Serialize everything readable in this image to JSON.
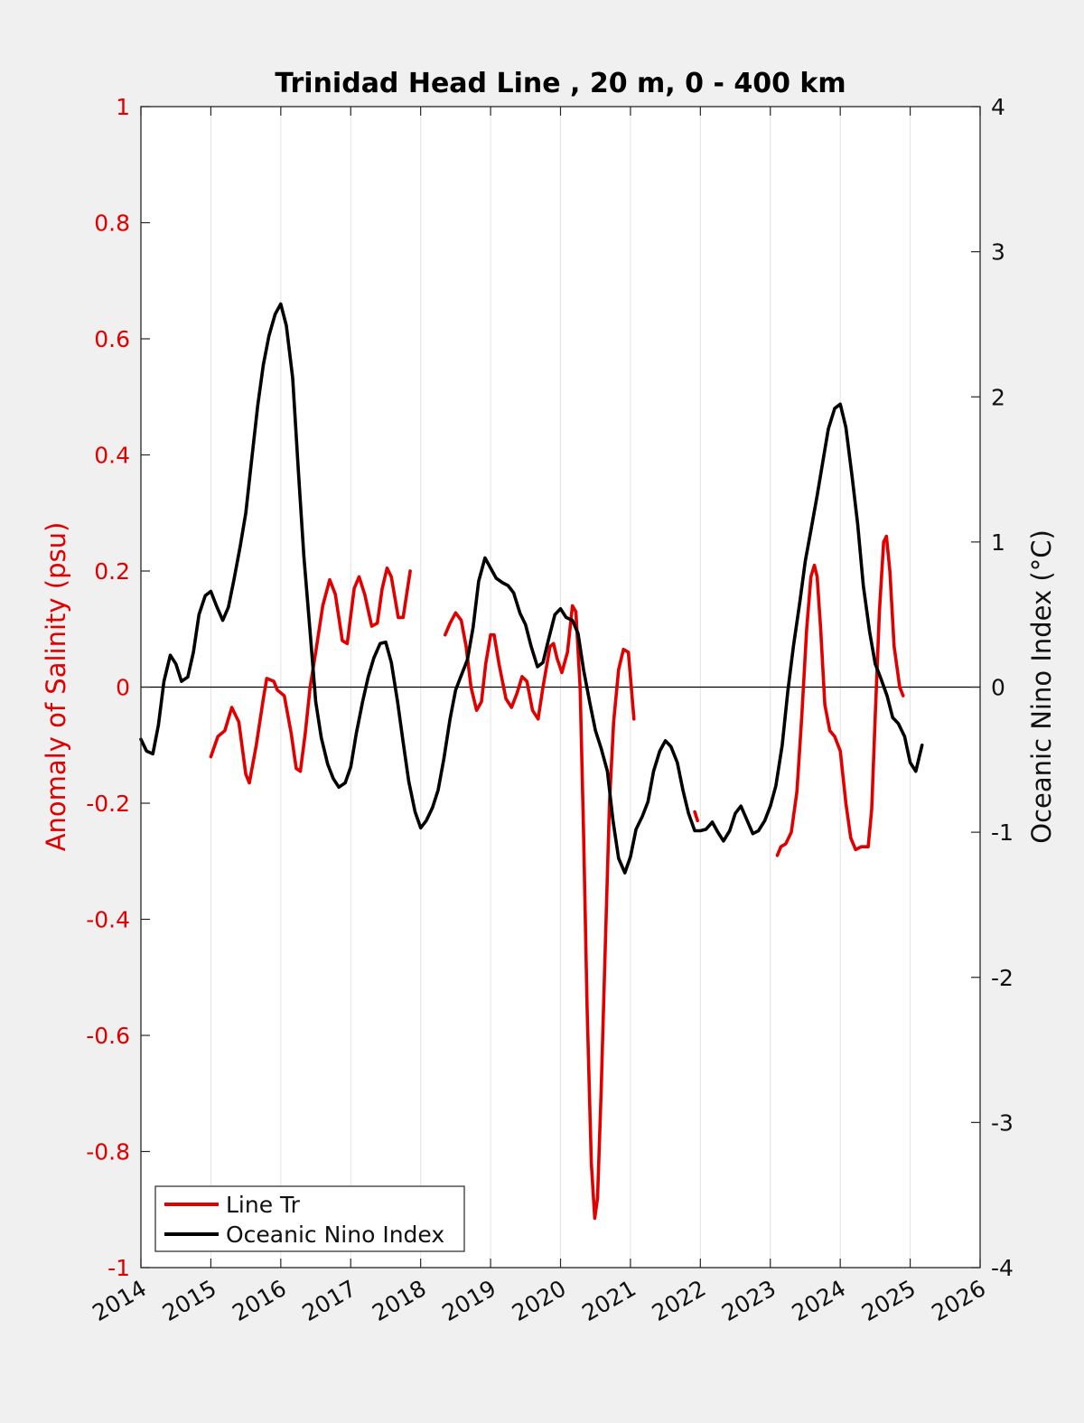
{
  "chart_data": {
    "type": "line",
    "title": "Trinidad Head Line , 20 m, 0 - 400 km",
    "ylabel_left": "Anomaly of Salinity (psu)",
    "ylabel_right": "Oceanic Nino Index (°C)",
    "xlim": [
      2014,
      2026
    ],
    "ylim_left": [
      -1,
      1
    ],
    "ylim_right": [
      -4,
      4
    ],
    "x_ticks": [
      "2014",
      "2015",
      "2016",
      "2017",
      "2018",
      "2019",
      "2020",
      "2021",
      "2022",
      "2023",
      "2024",
      "2025",
      "2026"
    ],
    "y_left_ticks": [
      "-1",
      "-0.8",
      "-0.6",
      "-0.4",
      "-0.2",
      "0",
      "0.2",
      "0.4",
      "0.6",
      "0.8",
      "1"
    ],
    "y_right_ticks": [
      "-4",
      "-3",
      "-2",
      "-1",
      "0",
      "1",
      "2",
      "3",
      "4"
    ],
    "grid": "vertical",
    "zero_line": true,
    "legend_position": "bottom-left",
    "series": [
      {
        "name": "Line Tr",
        "axis": "left",
        "color": "#e00000",
        "segments": [
          [
            [
              2015.0,
              -0.12
            ],
            [
              2015.1,
              -0.085
            ],
            [
              2015.2,
              -0.075
            ],
            [
              2015.3,
              -0.035
            ],
            [
              2015.4,
              -0.06
            ],
            [
              2015.5,
              -0.15
            ],
            [
              2015.55,
              -0.165
            ],
            [
              2015.65,
              -0.1
            ],
            [
              2015.75,
              -0.02
            ],
            [
              2015.8,
              0.015
            ],
            [
              2015.9,
              0.01
            ],
            [
              2015.95,
              -0.005
            ],
            [
              2016.05,
              -0.015
            ],
            [
              2016.15,
              -0.08
            ],
            [
              2016.22,
              -0.14
            ],
            [
              2016.28,
              -0.145
            ],
            [
              2016.35,
              -0.08
            ],
            [
              2016.42,
              0.0
            ],
            [
              2016.5,
              0.06
            ],
            [
              2016.6,
              0.14
            ],
            [
              2016.7,
              0.185
            ],
            [
              2016.78,
              0.16
            ],
            [
              2016.88,
              0.08
            ],
            [
              2016.95,
              0.075
            ],
            [
              2017.05,
              0.17
            ],
            [
              2017.12,
              0.19
            ],
            [
              2017.2,
              0.16
            ],
            [
              2017.3,
              0.105
            ],
            [
              2017.38,
              0.11
            ],
            [
              2017.45,
              0.17
            ],
            [
              2017.52,
              0.205
            ],
            [
              2017.58,
              0.19
            ],
            [
              2017.68,
              0.12
            ],
            [
              2017.75,
              0.12
            ],
            [
              2017.85,
              0.2
            ]
          ],
          [
            [
              2018.35,
              0.09
            ],
            [
              2018.42,
              0.11
            ],
            [
              2018.5,
              0.128
            ],
            [
              2018.58,
              0.115
            ],
            [
              2018.65,
              0.07
            ],
            [
              2018.72,
              0.0
            ],
            [
              2018.8,
              -0.04
            ],
            [
              2018.87,
              -0.025
            ],
            [
              2018.93,
              0.04
            ],
            [
              2019.0,
              0.09
            ],
            [
              2019.05,
              0.09
            ],
            [
              2019.12,
              0.04
            ],
            [
              2019.22,
              -0.02
            ],
            [
              2019.3,
              -0.035
            ],
            [
              2019.38,
              -0.01
            ],
            [
              2019.45,
              0.018
            ],
            [
              2019.52,
              0.01
            ],
            [
              2019.6,
              -0.04
            ],
            [
              2019.68,
              -0.055
            ],
            [
              2019.75,
              0.0
            ],
            [
              2019.85,
              0.07
            ],
            [
              2019.9,
              0.075
            ],
            [
              2019.95,
              0.05
            ],
            [
              2020.02,
              0.025
            ],
            [
              2020.1,
              0.06
            ],
            [
              2020.17,
              0.14
            ],
            [
              2020.22,
              0.13
            ],
            [
              2020.28,
              0.0
            ],
            [
              2020.33,
              -0.25
            ],
            [
              2020.38,
              -0.55
            ],
            [
              2020.44,
              -0.82
            ],
            [
              2020.49,
              -0.915
            ],
            [
              2020.53,
              -0.88
            ],
            [
              2020.58,
              -0.7
            ],
            [
              2020.64,
              -0.45
            ],
            [
              2020.7,
              -0.2
            ],
            [
              2020.76,
              -0.06
            ],
            [
              2020.83,
              0.03
            ],
            [
              2020.9,
              0.065
            ],
            [
              2020.97,
              0.06
            ],
            [
              2021.05,
              -0.055
            ]
          ],
          [
            [
              2021.92,
              -0.215
            ],
            [
              2021.96,
              -0.23
            ]
          ],
          [
            [
              2023.1,
              -0.29
            ],
            [
              2023.15,
              -0.275
            ],
            [
              2023.22,
              -0.27
            ],
            [
              2023.3,
              -0.25
            ],
            [
              2023.38,
              -0.18
            ],
            [
              2023.45,
              -0.05
            ],
            [
              2023.52,
              0.1
            ],
            [
              2023.58,
              0.19
            ],
            [
              2023.63,
              0.21
            ],
            [
              2023.67,
              0.19
            ],
            [
              2023.72,
              0.1
            ],
            [
              2023.78,
              -0.03
            ],
            [
              2023.85,
              -0.075
            ],
            [
              2023.92,
              -0.085
            ],
            [
              2024.0,
              -0.11
            ],
            [
              2024.08,
              -0.2
            ],
            [
              2024.15,
              -0.26
            ],
            [
              2024.22,
              -0.28
            ],
            [
              2024.3,
              -0.275
            ],
            [
              2024.4,
              -0.275
            ],
            [
              2024.45,
              -0.21
            ],
            [
              2024.5,
              -0.05
            ],
            [
              2024.56,
              0.13
            ],
            [
              2024.62,
              0.25
            ],
            [
              2024.66,
              0.26
            ],
            [
              2024.71,
              0.2
            ],
            [
              2024.77,
              0.07
            ],
            [
              2024.85,
              0.0
            ],
            [
              2024.9,
              -0.015
            ]
          ]
        ]
      },
      {
        "name": "Oceanic Nino Index",
        "axis": "right",
        "color": "#000000",
        "segments": [
          [
            [
              2014.0,
              -0.36
            ],
            [
              2014.08,
              -0.44
            ],
            [
              2014.17,
              -0.46
            ],
            [
              2014.25,
              -0.26
            ],
            [
              2014.33,
              0.04
            ],
            [
              2014.42,
              0.22
            ],
            [
              2014.5,
              0.16
            ],
            [
              2014.58,
              0.04
            ],
            [
              2014.67,
              0.07
            ],
            [
              2014.75,
              0.24
            ],
            [
              2014.83,
              0.5
            ],
            [
              2014.92,
              0.63
            ],
            [
              2015.0,
              0.66
            ],
            [
              2015.08,
              0.56
            ],
            [
              2015.17,
              0.46
            ],
            [
              2015.25,
              0.55
            ],
            [
              2015.33,
              0.74
            ],
            [
              2015.42,
              0.97
            ],
            [
              2015.5,
              1.2
            ],
            [
              2015.58,
              1.55
            ],
            [
              2015.67,
              1.94
            ],
            [
              2015.75,
              2.22
            ],
            [
              2015.83,
              2.42
            ],
            [
              2015.92,
              2.57
            ],
            [
              2016.0,
              2.64
            ],
            [
              2016.08,
              2.49
            ],
            [
              2016.17,
              2.13
            ],
            [
              2016.25,
              1.5
            ],
            [
              2016.33,
              0.9
            ],
            [
              2016.42,
              0.38
            ],
            [
              2016.5,
              -0.1
            ],
            [
              2016.58,
              -0.35
            ],
            [
              2016.67,
              -0.53
            ],
            [
              2016.75,
              -0.63
            ],
            [
              2016.83,
              -0.69
            ],
            [
              2016.92,
              -0.66
            ],
            [
              2017.0,
              -0.55
            ],
            [
              2017.08,
              -0.32
            ],
            [
              2017.17,
              -0.1
            ],
            [
              2017.25,
              0.07
            ],
            [
              2017.33,
              0.2
            ],
            [
              2017.42,
              0.3
            ],
            [
              2017.5,
              0.31
            ],
            [
              2017.58,
              0.17
            ],
            [
              2017.67,
              -0.1
            ],
            [
              2017.75,
              -0.38
            ],
            [
              2017.83,
              -0.65
            ],
            [
              2017.92,
              -0.86
            ],
            [
              2018.0,
              -0.97
            ],
            [
              2018.08,
              -0.92
            ],
            [
              2018.17,
              -0.83
            ],
            [
              2018.25,
              -0.71
            ],
            [
              2018.33,
              -0.5
            ],
            [
              2018.42,
              -0.22
            ],
            [
              2018.5,
              -0.02
            ],
            [
              2018.58,
              0.08
            ],
            [
              2018.67,
              0.19
            ],
            [
              2018.75,
              0.41
            ],
            [
              2018.83,
              0.73
            ],
            [
              2018.92,
              0.89
            ],
            [
              2019.0,
              0.82
            ],
            [
              2019.08,
              0.75
            ],
            [
              2019.17,
              0.72
            ],
            [
              2019.25,
              0.7
            ],
            [
              2019.33,
              0.65
            ],
            [
              2019.42,
              0.51
            ],
            [
              2019.5,
              0.43
            ],
            [
              2019.58,
              0.28
            ],
            [
              2019.67,
              0.14
            ],
            [
              2019.75,
              0.17
            ],
            [
              2019.83,
              0.33
            ],
            [
              2019.92,
              0.5
            ],
            [
              2020.0,
              0.54
            ],
            [
              2020.08,
              0.48
            ],
            [
              2020.17,
              0.46
            ],
            [
              2020.25,
              0.37
            ],
            [
              2020.33,
              0.12
            ],
            [
              2020.42,
              -0.11
            ],
            [
              2020.5,
              -0.3
            ],
            [
              2020.58,
              -0.42
            ],
            [
              2020.67,
              -0.58
            ],
            [
              2020.75,
              -0.92
            ],
            [
              2020.83,
              -1.18
            ],
            [
              2020.92,
              -1.28
            ],
            [
              2021.0,
              -1.17
            ],
            [
              2021.08,
              -0.98
            ],
            [
              2021.17,
              -0.89
            ],
            [
              2021.25,
              -0.79
            ],
            [
              2021.33,
              -0.58
            ],
            [
              2021.42,
              -0.44
            ],
            [
              2021.5,
              -0.37
            ],
            [
              2021.58,
              -0.41
            ],
            [
              2021.67,
              -0.52
            ],
            [
              2021.75,
              -0.71
            ],
            [
              2021.83,
              -0.87
            ],
            [
              2021.92,
              -0.99
            ],
            [
              2022.0,
              -0.99
            ],
            [
              2022.08,
              -0.98
            ],
            [
              2022.17,
              -0.93
            ],
            [
              2022.25,
              -1.0
            ],
            [
              2022.33,
              -1.06
            ],
            [
              2022.42,
              -0.99
            ],
            [
              2022.5,
              -0.87
            ],
            [
              2022.58,
              -0.82
            ],
            [
              2022.67,
              -0.92
            ],
            [
              2022.75,
              -1.01
            ],
            [
              2022.83,
              -0.99
            ],
            [
              2022.92,
              -0.92
            ],
            [
              2023.0,
              -0.82
            ],
            [
              2023.08,
              -0.68
            ],
            [
              2023.17,
              -0.4
            ],
            [
              2023.25,
              -0.03
            ],
            [
              2023.33,
              0.28
            ],
            [
              2023.42,
              0.58
            ],
            [
              2023.5,
              0.87
            ],
            [
              2023.58,
              1.08
            ],
            [
              2023.67,
              1.32
            ],
            [
              2023.75,
              1.55
            ],
            [
              2023.83,
              1.78
            ],
            [
              2023.92,
              1.92
            ],
            [
              2024.0,
              1.95
            ],
            [
              2024.08,
              1.79
            ],
            [
              2024.17,
              1.45
            ],
            [
              2024.25,
              1.12
            ],
            [
              2024.33,
              0.7
            ],
            [
              2024.42,
              0.38
            ],
            [
              2024.5,
              0.16
            ],
            [
              2024.58,
              0.06
            ],
            [
              2024.67,
              -0.06
            ],
            [
              2024.75,
              -0.21
            ],
            [
              2024.83,
              -0.25
            ],
            [
              2024.92,
              -0.34
            ],
            [
              2025.0,
              -0.52
            ],
            [
              2025.08,
              -0.58
            ],
            [
              2025.17,
              -0.4
            ]
          ]
        ]
      }
    ]
  }
}
